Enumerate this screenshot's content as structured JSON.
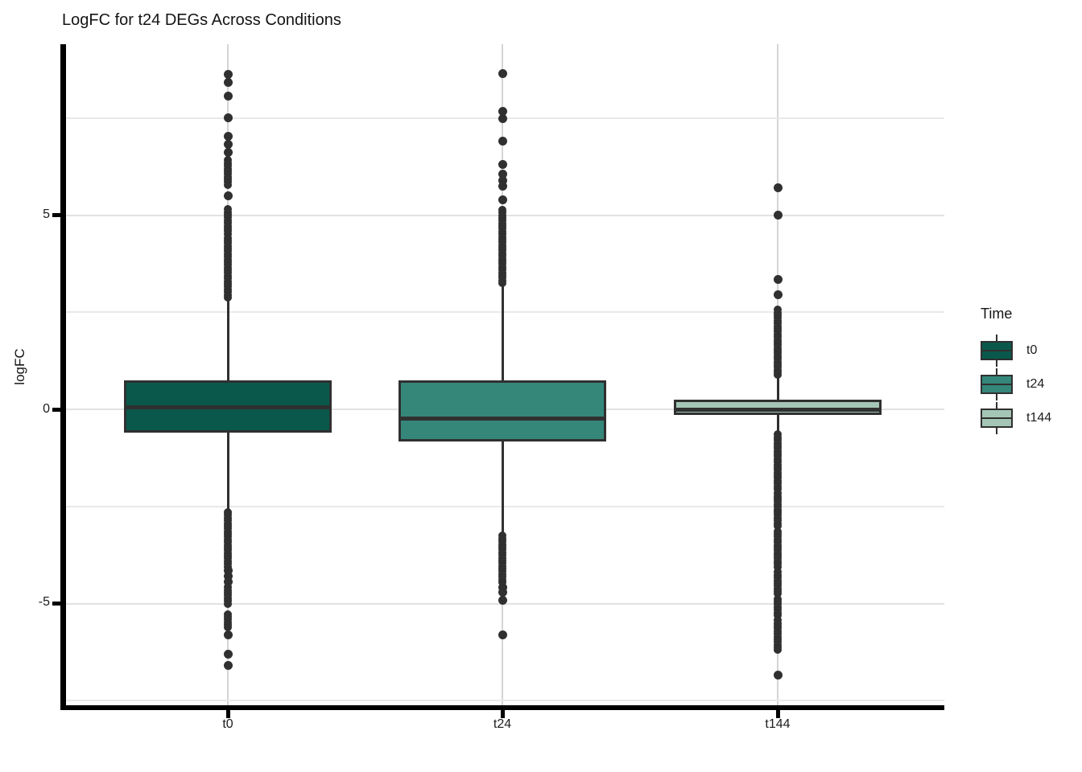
{
  "title": "LogFC for t24 DEGs Across Conditions",
  "axes": {
    "y_label": "logFC",
    "y_ticks": [
      {
        "label": "5",
        "value": 5
      },
      {
        "label": "0",
        "value": 0
      },
      {
        "label": "-5",
        "value": -5
      }
    ],
    "x_ticks": [
      {
        "label": "t0"
      },
      {
        "label": "t24"
      },
      {
        "label": "t144"
      }
    ]
  },
  "legend": {
    "title": "Time",
    "items": [
      {
        "label": "t0",
        "color": "#0a584b"
      },
      {
        "label": "t24",
        "color": "#35877a"
      },
      {
        "label": "t144",
        "color": "#a5c6b6"
      }
    ]
  },
  "chart_data": {
    "type": "boxplot",
    "title": "LogFC for t24 DEGs Across Conditions",
    "xlabel": "",
    "ylabel": "logFC",
    "categories": [
      "t0",
      "t24",
      "t144"
    ],
    "ylim": [
      -7.7,
      9.4
    ],
    "yticks": [
      5,
      0,
      -5
    ],
    "gridlines": {
      "major": [
        5,
        0,
        -5
      ],
      "minor": [
        7.5,
        2.5,
        -2.5,
        -7.5
      ]
    },
    "legend_title": "Time",
    "legend_position": "right",
    "colors": {
      "line": "#303030",
      "axis": "#000000",
      "grid_major": "#e2e2e2",
      "grid_minor": "#e9e9e9",
      "grid_vertical": "#d4d4d4",
      "text": "#1d1d1d"
    },
    "series": [
      {
        "name": "t0",
        "fill": "#0a584b",
        "q1": -0.6,
        "median": 0.05,
        "q3": 0.75,
        "whisker_low": -2.57,
        "whisker_high": 2.85,
        "outliers_dense": [
          [
            2.88,
            4.42
          ],
          [
            4.52,
            5.2
          ],
          [
            5.78,
            6.42
          ],
          [
            -4.05,
            -2.6
          ],
          [
            -5.0,
            -4.55
          ],
          [
            -5.62,
            -5.25
          ]
        ],
        "outliers": [
          5.5,
          6.62,
          6.82,
          7.02,
          7.5,
          8.07,
          8.42,
          8.63,
          -4.15,
          -4.3,
          -4.45,
          -5.8,
          -6.3,
          -6.6
        ]
      },
      {
        "name": "t24",
        "fill": "#35877a",
        "q1": -0.83,
        "median": -0.23,
        "q3": 0.75,
        "whisker_low": -3.2,
        "whisker_high": 3.2,
        "outliers_dense": [
          [
            3.25,
            5.2
          ],
          [
            -4.45,
            -3.25
          ]
        ],
        "outliers": [
          5.4,
          5.75,
          5.88,
          6.06,
          6.3,
          6.9,
          7.48,
          7.68,
          8.65,
          -4.58,
          -4.72,
          -4.92,
          -5.8
        ]
      },
      {
        "name": "t144",
        "fill": "#a5c6b6",
        "q1": -0.15,
        "median": -0.01,
        "q3": 0.25,
        "whisker_low": -0.6,
        "whisker_high": 0.85,
        "outliers_dense": [
          [
            0.88,
            2.6
          ],
          [
            -2.05,
            -0.65
          ],
          [
            -3.0,
            -2.12
          ],
          [
            -4.05,
            -3.08
          ],
          [
            -4.75,
            -4.15
          ],
          [
            -5.3,
            -4.85
          ],
          [
            -6.2,
            -5.4
          ]
        ],
        "outliers": [
          2.95,
          3.35,
          5.0,
          5.7,
          -6.85
        ]
      }
    ]
  }
}
